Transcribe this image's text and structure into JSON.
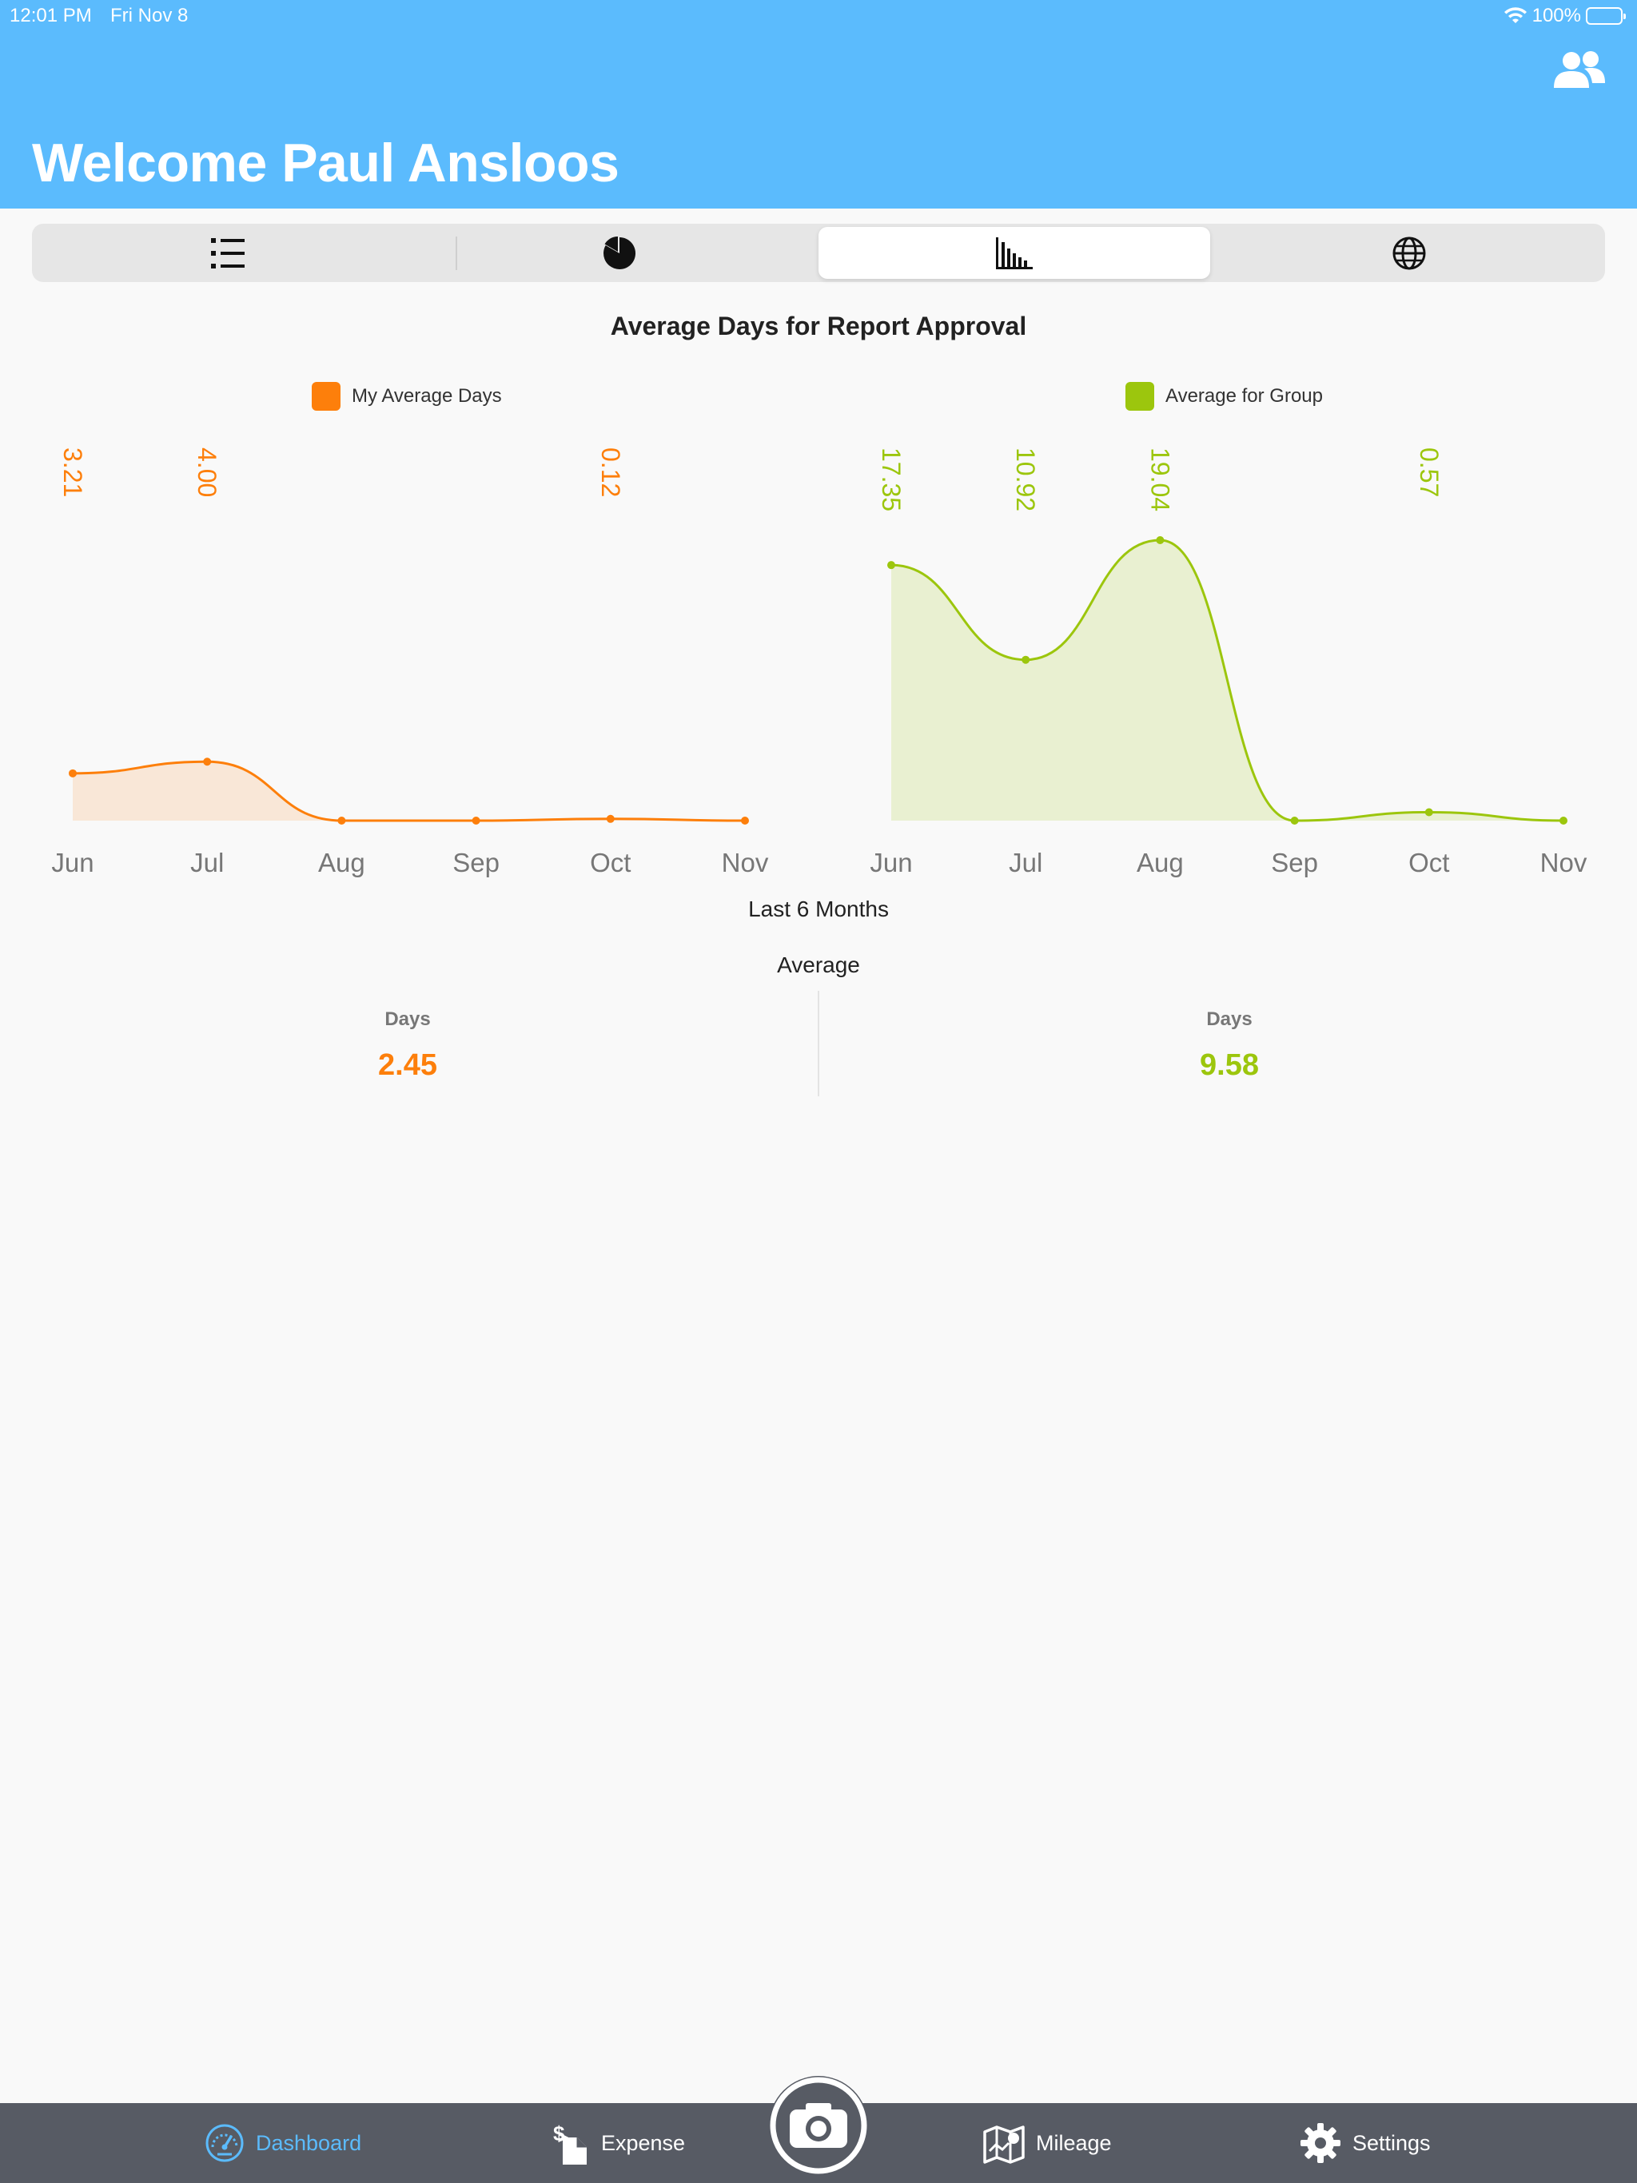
{
  "status_bar": {
    "time": "12:01 PM",
    "date": "Fri Nov 8",
    "battery": "100%"
  },
  "header": {
    "welcome": "Welcome Paul Ansloos",
    "users_icon": "users-icon"
  },
  "segmented": {
    "segments": [
      {
        "icon": "list-icon"
      },
      {
        "icon": "pie-chart-icon"
      },
      {
        "icon": "bar-chart-icon",
        "selected": true
      },
      {
        "icon": "globe-icon"
      }
    ]
  },
  "colors": {
    "header": "#5bbbfd",
    "mine": "#fd7f0b",
    "group": "#9cc60d",
    "tabbar": "#575b64",
    "tab_active": "#5bbbfd"
  },
  "chart_title": "Average Days for Report Approval",
  "legend": {
    "mine": "My Average Days",
    "group": "Average for Group"
  },
  "chart_data": [
    {
      "type": "area",
      "series": [
        {
          "name": "My Average Days",
          "values": [
            3.21,
            4.0,
            0,
            0,
            0.12,
            0
          ]
        }
      ],
      "categories": [
        "Jun",
        "Jul",
        "Aug",
        "Sep",
        "Oct",
        "Nov"
      ],
      "data_labels": [
        "3.21",
        "4.00",
        "",
        "",
        "0.12",
        ""
      ],
      "ylim": [
        0,
        19.04
      ]
    },
    {
      "type": "area",
      "series": [
        {
          "name": "Average for Group",
          "values": [
            17.35,
            10.92,
            19.04,
            0,
            0.57,
            0
          ]
        }
      ],
      "categories": [
        "Jun",
        "Jul",
        "Aug",
        "Sep",
        "Oct",
        "Nov"
      ],
      "data_labels": [
        "17.35",
        "10.92",
        "19.04",
        "",
        "0.57",
        ""
      ],
      "ylim": [
        0,
        19.04
      ]
    }
  ],
  "period_label": "Last 6 Months",
  "summary": {
    "title": "Average",
    "mine": {
      "label": "Days",
      "value": "2.45"
    },
    "group": {
      "label": "Days",
      "value": "9.58"
    }
  },
  "tabbar": {
    "dashboard": "Dashboard",
    "expense": "Expense",
    "mileage": "Mileage",
    "settings": "Settings",
    "camera_icon": "camera-icon"
  }
}
